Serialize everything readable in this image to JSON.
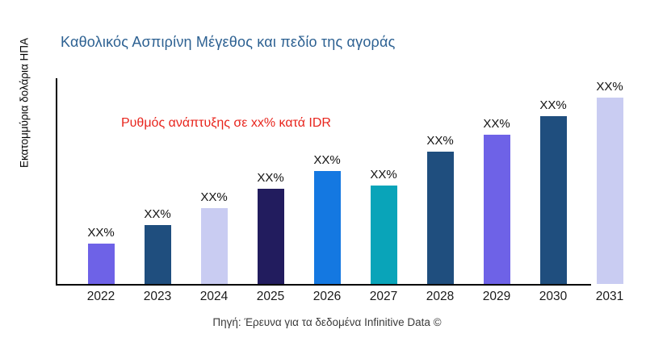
{
  "title": {
    "text": "Καθολικός Ασπιρίνη Μέγεθος και πεδίο της αγοράς",
    "color": "#2d6192"
  },
  "annotation": {
    "text": "Ρυθμός ανάπτυξης σε xx% κατά IDR",
    "color": "#e8251d"
  },
  "y_axis_label": "Εκατομμύρια δολάρια ΗΠΑ",
  "source_note": "Πηγή: Έρευνα για τα δεδομένα Infinitive Data ©",
  "axis_color": "#000000",
  "chart_data": {
    "type": "bar",
    "title": "Καθολικός Ασπιρίνη Μέγεθος και πεδίο της αγοράς",
    "xlabel": "",
    "ylabel": "Εκατομμύρια δολάρια ΗΠΑ",
    "categories": [
      "2022",
      "2023",
      "2024",
      "2025",
      "2026",
      "2027",
      "2028",
      "2029",
      "2030",
      "2031"
    ],
    "values": [
      50,
      73,
      94,
      118,
      140,
      122,
      164,
      185,
      208,
      231
    ],
    "value_labels": [
      "XX%",
      "XX%",
      "XX%",
      "XX%",
      "XX%",
      "XX%",
      "XX%",
      "XX%",
      "XX%",
      "XX%"
    ],
    "bar_colors": [
      "#6e62e7",
      "#1f4e7e",
      "#c9ccf2",
      "#221c5e",
      "#1478e1",
      "#09a4b9",
      "#1f4e7e",
      "#6e62e7",
      "#1f4e7e",
      "#c9ccf2"
    ],
    "ylim": [
      0,
      255
    ],
    "grid": false,
    "legend": "none",
    "annotation": "Ρυθμός ανάπτυξης σε xx% κατά IDR"
  }
}
